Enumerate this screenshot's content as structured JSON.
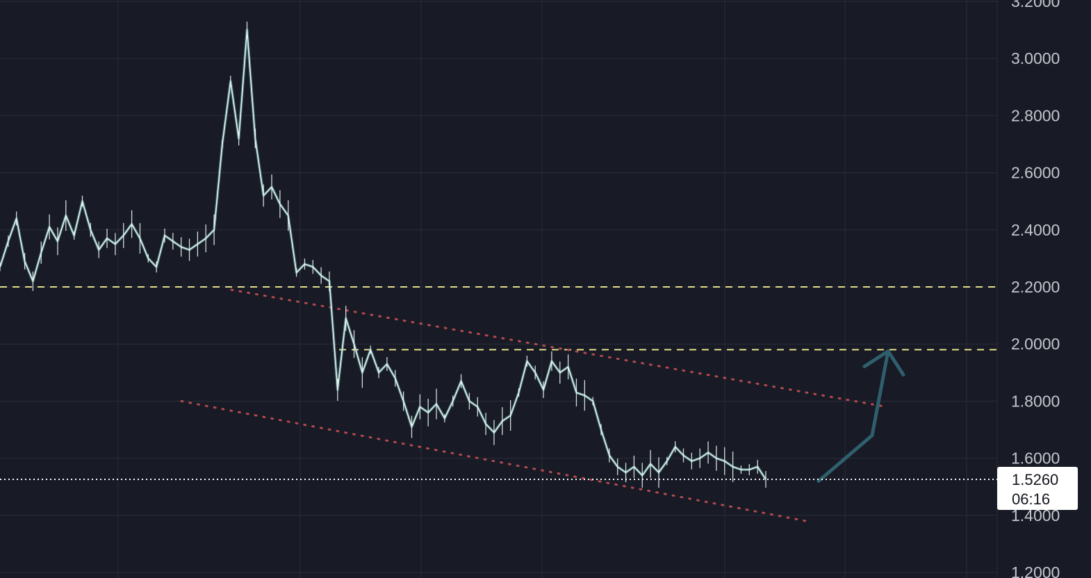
{
  "chart_data": {
    "type": "line",
    "subtype": "candlestick-like price chart",
    "title": "",
    "xlabel": "",
    "ylabel": "",
    "ylim": [
      1.2,
      3.2
    ],
    "y_ticks": [
      "1.2000",
      "1.4000",
      "1.6000",
      "1.8000",
      "2.0000",
      "2.2000",
      "2.4000",
      "2.6000",
      "2.8000",
      "3.0000",
      "3.2000"
    ],
    "grid": true,
    "colors": {
      "background": "#181a25",
      "grid": "#2a2d3a",
      "price_line": "#e7f5f4",
      "price_line_accent": "#6fbdb4",
      "support_resistance": "#e3dd8b",
      "trend_channel": "#b34a4f",
      "projection_arrow": "#2f5f6d",
      "axis_text": "#c5c7cf",
      "current_price_box": "#ffffff"
    },
    "series": [
      {
        "values": [
          2.27,
          2.36,
          2.44,
          2.29,
          2.22,
          2.32,
          2.41,
          2.36,
          2.45,
          2.38,
          2.5,
          2.4,
          2.33,
          2.37,
          2.35,
          2.38,
          2.42,
          2.37,
          2.3,
          2.27,
          2.38,
          2.36,
          2.34,
          2.33,
          2.35,
          2.37,
          2.4,
          2.7,
          2.92,
          2.72,
          3.1,
          2.72,
          2.52,
          2.55,
          2.49,
          2.45,
          2.25,
          2.28,
          2.27,
          2.24,
          2.22,
          1.84,
          2.09,
          2.0,
          1.9,
          1.98,
          1.9,
          1.93,
          1.88,
          1.8,
          1.71,
          1.78,
          1.76,
          1.79,
          1.74,
          1.8,
          1.87,
          1.8,
          1.78,
          1.72,
          1.69,
          1.73,
          1.75,
          1.83,
          1.94,
          1.9,
          1.84,
          1.94,
          1.9,
          1.92,
          1.83,
          1.82,
          1.8,
          1.7,
          1.61,
          1.57,
          1.55,
          1.57,
          1.54,
          1.58,
          1.55,
          1.59,
          1.64,
          1.61,
          1.59,
          1.6,
          1.62,
          1.6,
          1.59,
          1.57,
          1.56,
          1.56,
          1.57,
          1.526
        ]
      }
    ],
    "horizontal_levels": [
      2.2,
      1.98
    ],
    "trend_channel": {
      "upper": {
        "from": [
          0,
          2.19
        ],
        "to": [
          1,
          1.78
        ]
      },
      "lower": {
        "from": [
          0,
          1.8
        ],
        "to": [
          1,
          1.38
        ]
      }
    },
    "projection": {
      "points": [
        1.52,
        1.68,
        1.975
      ],
      "arrowhead": true
    },
    "current_price": {
      "label": "1.5260",
      "countdown": "06:16",
      "value": 1.526
    }
  }
}
